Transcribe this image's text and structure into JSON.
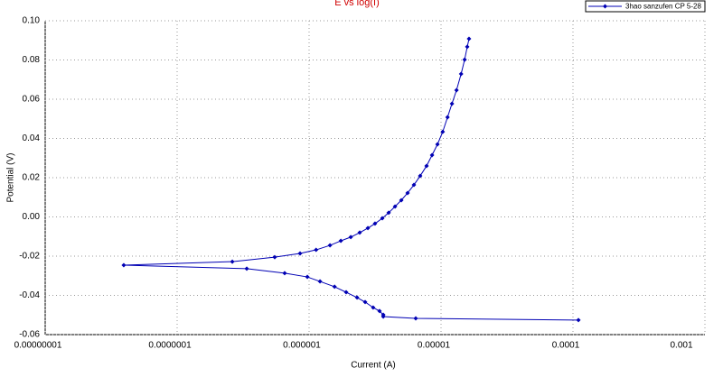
{
  "chart_data": {
    "type": "line",
    "title": "E vs log(I)",
    "x_label": "Current (A)",
    "y_label": "Potential (V)",
    "xscale": "log",
    "grid": true,
    "legend": "top-right",
    "xlim": [
      1e-08,
      0.001
    ],
    "xticks": [
      {
        "value": 1e-08,
        "label": "0.00000001"
      },
      {
        "value": 1e-07,
        "label": "0.0000001"
      },
      {
        "value": 1e-06,
        "label": "0.000001"
      },
      {
        "value": 1e-05,
        "label": "0.00001"
      },
      {
        "value": 0.0001,
        "label": "0.0001"
      },
      {
        "value": 0.001,
        "label": "0.001"
      }
    ],
    "ylim": [
      -0.06,
      0.1
    ],
    "yticks": [
      {
        "value": 0.1,
        "label": "0.10"
      },
      0.08,
      0.06,
      0.04,
      0.02,
      {
        "value": 0,
        "label": "0.00"
      },
      -0.02,
      -0.04,
      -0.06
    ],
    "x": [
      0.00011,
      6.43e-06,
      3.65e-06,
      3.65e-06,
      3.42e-06,
      3.06e-06,
      2.66e-06,
      2.31e-06,
      1.91e-06,
      1.56e-06,
      1.21e-06,
      9.7e-07,
      6.53e-07,
      3.37e-07,
      3.94e-08,
      2.62e-07,
      5.49e-07,
      8.54e-07,
      1.13e-06,
      1.44e-06,
      1.74e-06,
      2.07e-06,
      2.42e-06,
      2.79e-06,
      3.16e-06,
      3.59e-06,
      4.01e-06,
      4.48e-06,
      5e-06,
      5.58e-06,
      6.23e-06,
      6.95e-06,
      7.77e-06,
      8.55e-06,
      9.4e-06,
      1.03e-05,
      1.12e-05,
      1.21e-05,
      1.31e-05,
      1.42e-05,
      1.51e-05,
      1.58e-05,
      1.63e-05
    ],
    "series": [
      {
        "name": "3hao sanzufen CP 5-28",
        "color": "#0000b4",
        "values": [
          -0.0526,
          -0.0517,
          -0.0508,
          -0.0499,
          -0.048,
          -0.0462,
          -0.0434,
          -0.0411,
          -0.0384,
          -0.0356,
          -0.0329,
          -0.0306,
          -0.0287,
          -0.0264,
          -0.0246,
          -0.0228,
          -0.0205,
          -0.0186,
          -0.0168,
          -0.0145,
          -0.0122,
          -0.0103,
          -0.008,
          -0.0057,
          -0.0034,
          -0.0007,
          0.0021,
          0.0053,
          0.0085,
          0.0122,
          0.0163,
          0.0209,
          0.026,
          0.0315,
          0.037,
          0.0434,
          0.0508,
          0.0577,
          0.0646,
          0.0729,
          0.0802,
          0.0867,
          0.0908
        ]
      }
    ]
  }
}
